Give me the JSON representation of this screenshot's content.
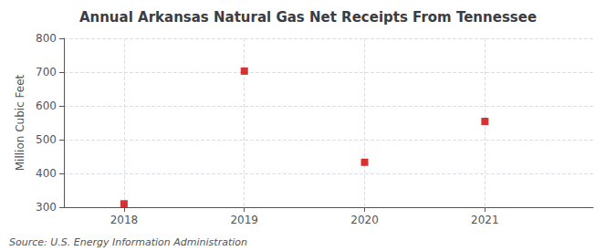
{
  "chart_data": {
    "type": "scatter",
    "title": "Annual Arkansas Natural Gas Net Receipts From Tennessee",
    "ylabel": "Million Cubic Feet",
    "annotations": [
      "Source: U.S. Energy Information Administration"
    ],
    "x": [
      2018,
      2019,
      2020,
      2021
    ],
    "values": [
      310,
      703,
      433,
      554
    ],
    "color": "#cc0000",
    "marker": "square",
    "xlim": [
      2017.5,
      2021.9
    ],
    "xticks": [
      2018,
      2019,
      2020,
      2021
    ],
    "ylim": [
      300,
      800
    ],
    "yticks": [
      300,
      400,
      500,
      600,
      700,
      800
    ],
    "grid": true
  }
}
